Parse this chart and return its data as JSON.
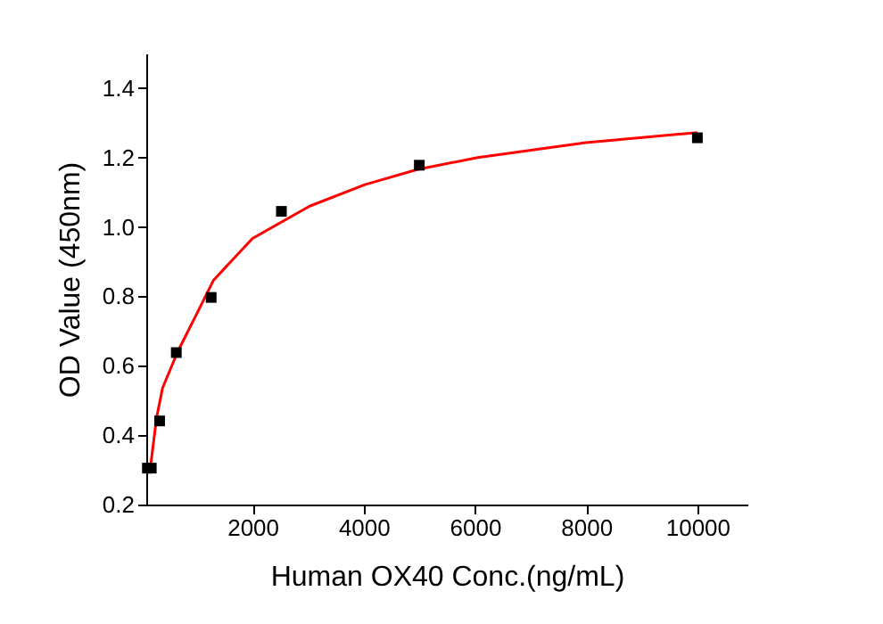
{
  "chart_data": {
    "type": "scatter",
    "xlabel": "Human OX40 Conc.(ng/mL)",
    "ylabel": "OD Value (450nm)",
    "xlim": [
      90,
      10900
    ],
    "ylim": [
      0.2,
      1.5
    ],
    "xticks": [
      2000,
      4000,
      6000,
      8000,
      10000
    ],
    "yticks": [
      0.2,
      0.4,
      0.6,
      0.8,
      {
        "value": 1,
        "label": "1.0"
      },
      1.2,
      1.4
    ],
    "grid": false,
    "marker": "square",
    "series": [
      {
        "type": "line",
        "marker": "none",
        "color": "#ff0000",
        "x": [
          167,
          275,
          383,
          653,
          977,
          1301,
          2000,
          3028,
          4022,
          4972,
          6050,
          7994,
          10001
        ],
        "values": [
          0.31,
          0.45,
          0.536,
          0.64,
          0.743,
          0.847,
          0.967,
          1.06,
          1.122,
          1.166,
          1.2,
          1.243,
          1.272
        ]
      },
      {
        "color": "#000000",
        "x": [
          110,
          180,
          330,
          630,
          1257,
          2520,
          5000,
          10000
        ],
        "values": [
          0.305,
          0.305,
          0.441,
          0.638,
          0.797,
          1.045,
          1.178,
          1.257
        ]
      }
    ]
  }
}
